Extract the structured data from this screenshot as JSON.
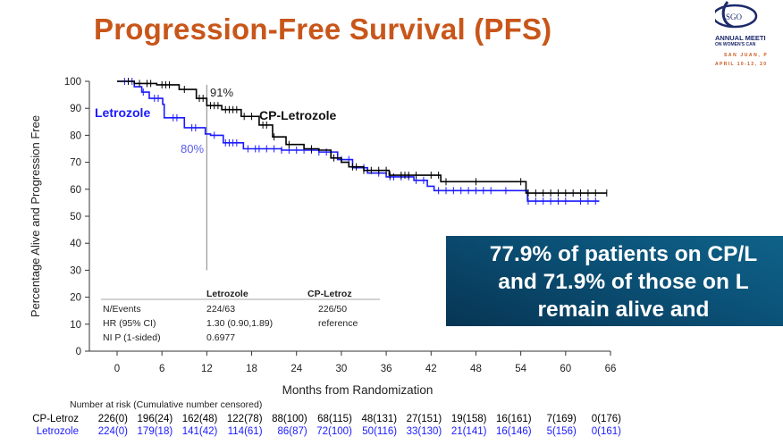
{
  "slide": {
    "title": "Progression-Free Survival (PFS)",
    "logo": {
      "text": "SGO",
      "line1": "ANNUAL MEETI",
      "line2": "ON WOMEN'S CAN",
      "line3": "SAN JUAN, P",
      "line4": "APRIL 10-13, 20"
    },
    "callout": {
      "lines": [
        "77.9% of patients on CP/L",
        "and 71.9% of those on L",
        "remain alive and"
      ],
      "background": "#0b5278"
    }
  },
  "chart_data": {
    "type": "line",
    "subtype": "kaplan-meier step",
    "xlabel": "Months from Randomization",
    "ylabel": "Percentage Alive and Progression Free",
    "xlim": [
      0,
      66
    ],
    "ylim": [
      0,
      100
    ],
    "xticks": [
      "0",
      "6",
      "12",
      "18",
      "24",
      "30",
      "36",
      "42",
      "48",
      "54",
      "60",
      "66"
    ],
    "yticks": [
      "0",
      "10",
      "20",
      "30",
      "40",
      "50",
      "60",
      "70",
      "80",
      "90",
      "100"
    ],
    "grid": false,
    "reference_line": {
      "x": 12,
      "y_range": [
        30,
        100
      ]
    },
    "annotations": [
      {
        "text": "91%",
        "series": "CP-Letrozole",
        "x": 12,
        "y": 91
      },
      {
        "text": "80%",
        "series": "Letrozole",
        "x": 12,
        "y": 80
      }
    ],
    "series": [
      {
        "name": "CP-Letrozole",
        "color": "#000000",
        "steps": [
          [
            0,
            100
          ],
          [
            2.3,
            99.2
          ],
          [
            5.3,
            98.7
          ],
          [
            8.3,
            97
          ],
          [
            10.6,
            93.7
          ],
          [
            12,
            91
          ],
          [
            14,
            89.5
          ],
          [
            16.6,
            87
          ],
          [
            19,
            83.8
          ],
          [
            20.8,
            79.4
          ],
          [
            22.6,
            76.6
          ],
          [
            25,
            75
          ],
          [
            27,
            74.5
          ],
          [
            28.6,
            71.6
          ],
          [
            30,
            70
          ],
          [
            31,
            68.3
          ],
          [
            33,
            67
          ],
          [
            36.4,
            65.2
          ],
          [
            43.3,
            62.8
          ],
          [
            54.7,
            58.6
          ],
          [
            65.5,
            58.6
          ]
        ],
        "censored": [
          1.5,
          3,
          4,
          4.5,
          6,
          6.5,
          7,
          9,
          11,
          11.5,
          12.5,
          13,
          13.5,
          14.5,
          15,
          15.5,
          16,
          17,
          18,
          19.5,
          20,
          21,
          23,
          26,
          29,
          31.5,
          32,
          33,
          34,
          35,
          36,
          36.5,
          38,
          38.5,
          39,
          40,
          42,
          43,
          44,
          48,
          54,
          55,
          56,
          57,
          58,
          59,
          60,
          61,
          62,
          63,
          64,
          65.5
        ]
      },
      {
        "name": "Letrozole",
        "color": "#1a1aff",
        "steps": [
          [
            0,
            100
          ],
          [
            2.3,
            98
          ],
          [
            3.3,
            96
          ],
          [
            4.3,
            93.7
          ],
          [
            6.1,
            91.5
          ],
          [
            6.3,
            86.5
          ],
          [
            9,
            82.8
          ],
          [
            11.8,
            80.5
          ],
          [
            12.5,
            80
          ],
          [
            14.2,
            77.2
          ],
          [
            16.9,
            75
          ],
          [
            22,
            74.5
          ],
          [
            27,
            73.8
          ],
          [
            29.5,
            71
          ],
          [
            31.5,
            68
          ],
          [
            33.5,
            66
          ],
          [
            36,
            64.6
          ],
          [
            39.7,
            63.3
          ],
          [
            41.5,
            61.1
          ],
          [
            42.4,
            59.5
          ],
          [
            54.9,
            55.6
          ],
          [
            64.5,
            55.6
          ]
        ],
        "censored": [
          1,
          2,
          3.5,
          5,
          5.5,
          7.5,
          8,
          10,
          10.5,
          13,
          14.5,
          15,
          15.5,
          16,
          17.5,
          18.5,
          19,
          20,
          21,
          22,
          23,
          24,
          25,
          26,
          27,
          28,
          30,
          31,
          33,
          35,
          36.5,
          37,
          38,
          39,
          40,
          41,
          43,
          44,
          45,
          46,
          47,
          48,
          49,
          50,
          52,
          55,
          56,
          57,
          58,
          59,
          60,
          62,
          63,
          64
        ]
      }
    ],
    "stats_table": {
      "headers": [
        "",
        "Letrozole",
        "CP-Letroz"
      ],
      "rows": [
        [
          "N/Events",
          "224/63",
          "226/50"
        ],
        [
          "HR (95% CI)",
          "1.30 (0.90,1.89)",
          "reference"
        ],
        [
          "NI P (1-sided)",
          "0.6977",
          ""
        ]
      ]
    },
    "risk_table": {
      "title": "Number at risk (Cumulative number censored)",
      "rows": [
        {
          "label": "CP-Letroz",
          "color": "#000000",
          "values": [
            "226(0)",
            "196(24)",
            "162(48)",
            "122(78)",
            "88(100)",
            "68(115)",
            "48(131)",
            "27(151)",
            "19(158)",
            "16(161)",
            "7(169)",
            "0(176)"
          ]
        },
        {
          "label": "Letrozole",
          "color": "#1a1aff",
          "values": [
            "224(0)",
            "179(18)",
            "141(42)",
            "114(61)",
            "86(87)",
            "72(100)",
            "50(116)",
            "33(130)",
            "21(141)",
            "16(146)",
            "5(156)",
            "0(161)"
          ]
        }
      ]
    }
  }
}
